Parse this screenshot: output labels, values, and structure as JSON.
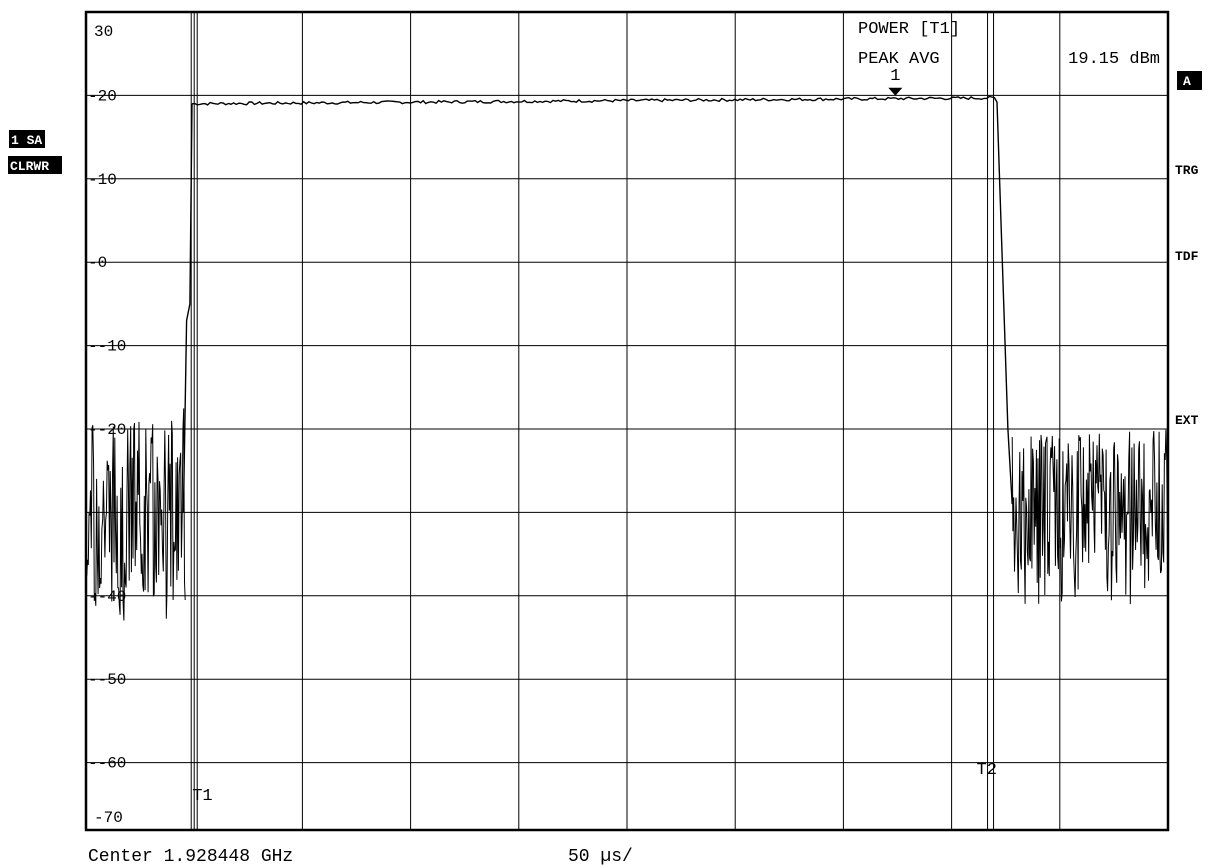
{
  "chart_data": {
    "type": "line",
    "title": "",
    "xlabel": "",
    "ylabel": "",
    "ylim": [
      -70,
      30
    ],
    "yunit": "dBm",
    "y_tick_labels": [
      "30",
      "20",
      "10",
      "0",
      "-10",
      "-20",
      "-40",
      "-50",
      "-60",
      "-70"
    ],
    "grid": true,
    "footer": {
      "center_label": "Center 1.928448 GHz",
      "sweep_label": "50 µs/"
    },
    "x_divisions": 10,
    "x_per_div_us": 50,
    "marker_readout": {
      "mode_label": "POWER [T1]",
      "measure_label": "PEAK AVG",
      "value_text": "19.15 dBm",
      "marker_number": "1",
      "marker_time_us": 374
    },
    "gates": [
      {
        "name": "T1",
        "time_us": 50
      },
      {
        "name": "T2",
        "time_us": 418
      }
    ],
    "series": [
      {
        "points_us_dbm": [
          [
            0,
            -30
          ],
          [
            45,
            -30
          ],
          [
            46.5,
            -7
          ],
          [
            48,
            -5
          ],
          [
            49,
            19
          ],
          [
            140,
            19.2
          ],
          [
            260,
            19.4
          ],
          [
            380,
            19.6
          ],
          [
            420,
            19.7
          ],
          [
            421,
            19.2
          ],
          [
            426,
            -20
          ],
          [
            428,
            -29
          ],
          [
            500,
            -29
          ]
        ],
        "noise_floor_left": {
          "x_range_us": [
            0,
            46
          ],
          "mean_dbm": -30,
          "min_dbm": -43,
          "max_dbm": -17
        },
        "noise_floor_right": {
          "x_range_us": [
            428,
            500
          ],
          "mean_dbm": -29,
          "min_dbm": -41,
          "max_dbm": -20
        }
      }
    ]
  },
  "side_labels": {
    "trace_label": "1 SA",
    "trace_mode": "CLRWR",
    "right": [
      "A",
      "TRG",
      "TDF",
      "EXT"
    ]
  },
  "colors": {
    "trace": "#000000",
    "grid": "#000000",
    "background": "#ffffff"
  }
}
